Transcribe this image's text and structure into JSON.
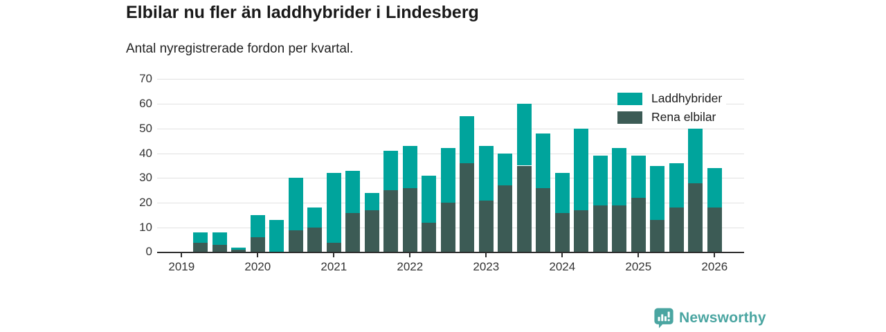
{
  "header": {
    "title": "Elbilar nu fler än laddhybrider i Lindesberg",
    "subtitle": "Antal nyregistrerade fordon per kvartal."
  },
  "colors": {
    "laddhybrider": "#00a49c",
    "rena_elbilar": "#3c5b55",
    "grid": "#e1e1e1",
    "axis": "#2e2e2e",
    "text": "#333333",
    "title_text": "#191919",
    "brand_teal": "#4aa5a1"
  },
  "legend": {
    "items": [
      {
        "label": "Laddhybrider",
        "color": "#00a49c"
      },
      {
        "label": "Rena elbilar",
        "color": "#3c5b55"
      }
    ]
  },
  "chart_data": {
    "type": "bar",
    "stacked": true,
    "title": "Elbilar nu fler än laddhybrider i Lindesberg",
    "subtitle": "Antal nyregistrerade fordon per kvartal.",
    "ylabel": "",
    "xlabel": "",
    "ylim": [
      0,
      70
    ],
    "yticks": [
      0,
      10,
      20,
      30,
      40,
      50,
      60,
      70
    ],
    "grid": true,
    "legend_position": "top-right",
    "x_year_labels": [
      "2019",
      "2020",
      "2021",
      "2022",
      "2023",
      "2024",
      "2025",
      "2026"
    ],
    "categories": [
      "2019 Q1",
      "2019 Q2",
      "2019 Q3",
      "2019 Q4",
      "2020 Q1",
      "2020 Q2",
      "2020 Q3",
      "2020 Q4",
      "2021 Q1",
      "2021 Q2",
      "2021 Q3",
      "2021 Q4",
      "2022 Q1",
      "2022 Q2",
      "2022 Q3",
      "2022 Q4",
      "2023 Q1",
      "2023 Q2",
      "2023 Q3",
      "2023 Q4",
      "2024 Q1",
      "2024 Q2",
      "2024 Q3",
      "2024 Q4",
      "2025 Q1",
      "2025 Q2",
      "2025 Q3",
      "2025 Q4",
      "2026 Q1"
    ],
    "series": [
      {
        "name": "Rena elbilar",
        "color": "#3c5b55",
        "values": [
          0,
          4,
          3,
          1,
          6,
          0,
          9,
          10,
          4,
          16,
          17,
          25,
          26,
          12,
          20,
          36,
          21,
          27,
          35,
          26,
          16,
          17,
          19,
          19,
          22,
          13,
          18,
          28,
          18
        ]
      },
      {
        "name": "Laddhybrider",
        "color": "#00a49c",
        "values": [
          0,
          4,
          5,
          1,
          9,
          13,
          21,
          8,
          28,
          17,
          7,
          16,
          17,
          19,
          22,
          19,
          22,
          13,
          25,
          22,
          16,
          33,
          20,
          23,
          17,
          22,
          18,
          22,
          16
        ]
      }
    ],
    "totals": [
      0,
      8,
      8,
      2,
      15,
      13,
      30,
      18,
      32,
      33,
      24,
      41,
      43,
      31,
      42,
      55,
      43,
      40,
      60,
      48,
      32,
      50,
      39,
      42,
      39,
      35,
      36,
      50,
      34
    ]
  },
  "footer": {
    "brand": "Newsworthy"
  }
}
